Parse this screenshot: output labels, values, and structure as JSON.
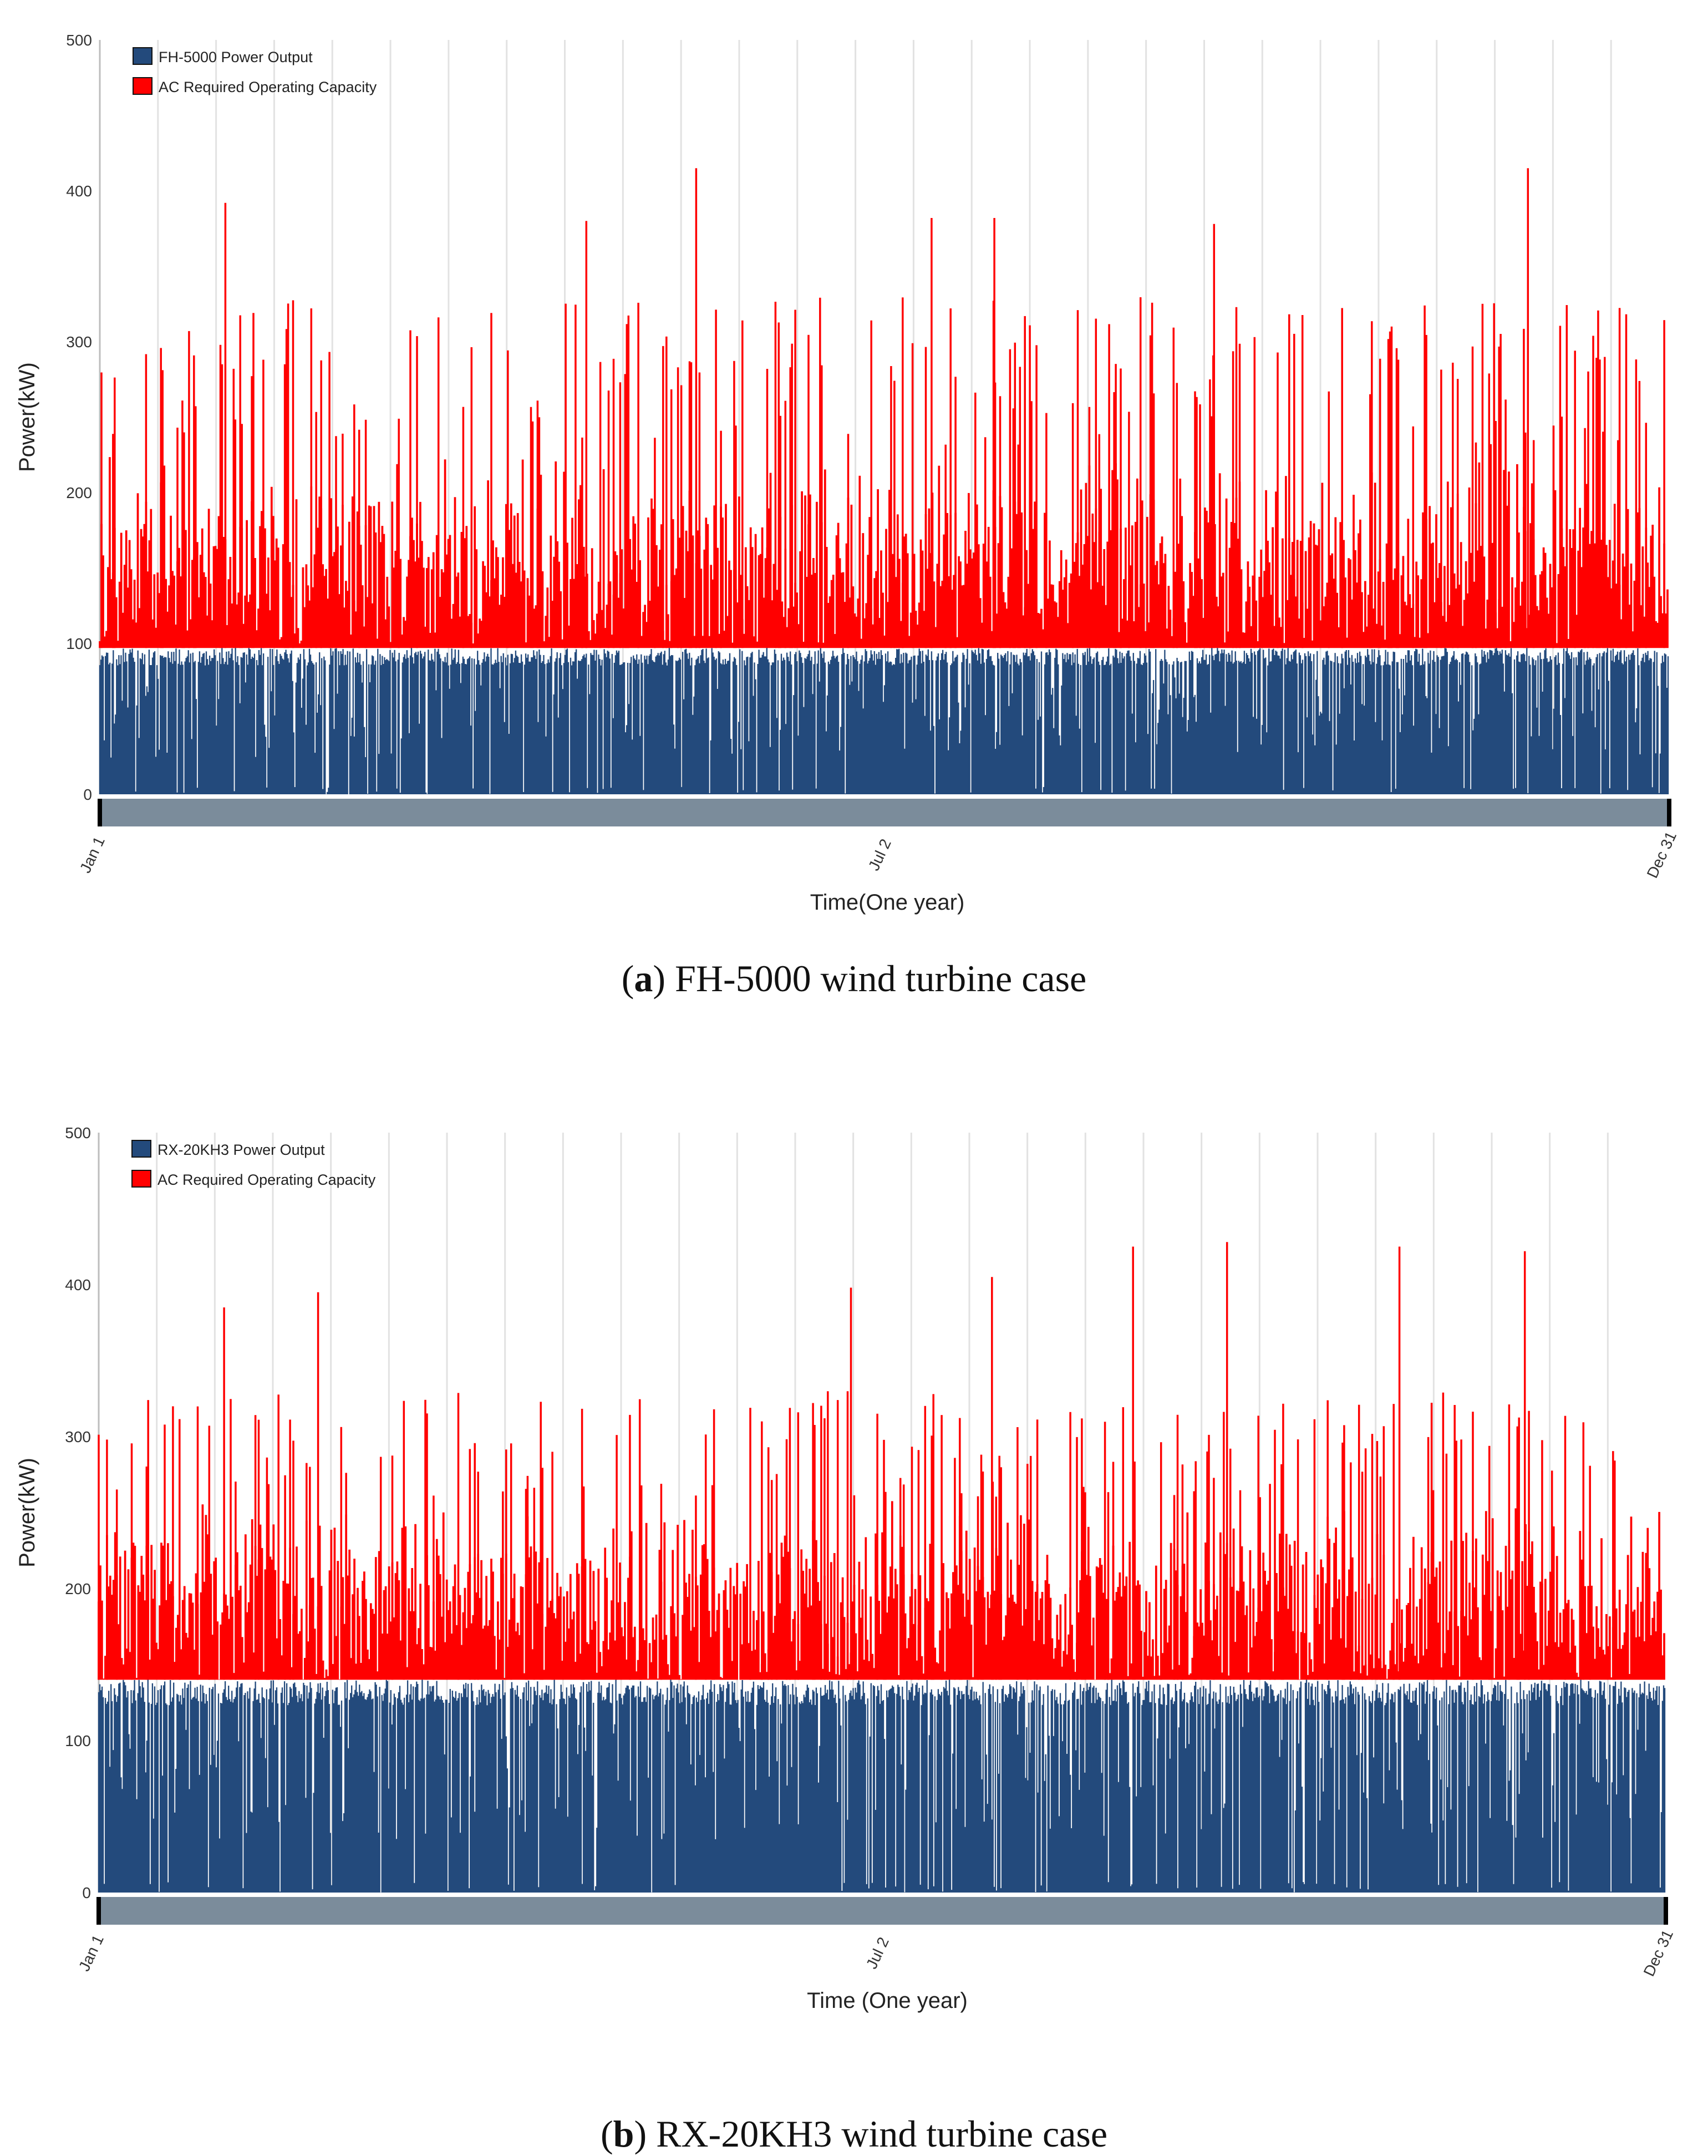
{
  "chart_data": [
    {
      "type": "bar",
      "panel_id": "a",
      "ylabel": "Power(kW)",
      "xlabel": "Time(One year)",
      "ylim": [
        0,
        500
      ],
      "yticks": [
        0,
        100,
        200,
        300,
        400,
        500
      ],
      "xticks": [
        "Jan 1",
        "Jul 2",
        "Dec 31"
      ],
      "grid": "vertical",
      "legend_position": "top-left",
      "caption_letter": "a",
      "caption_text": ") FH-5000 wind turbine case",
      "series": [
        {
          "name": "FH-5000 Power Output",
          "color": "#234a7c",
          "cap": 97,
          "typical_range": [
            0,
            97
          ]
        },
        {
          "name": "AC Required Operating Capacity",
          "color": "#ff0000",
          "base": 97,
          "typical_range": [
            100,
            230
          ],
          "peaks": [
            [
              8,
              392
            ],
            [
              38,
              415
            ],
            [
              53,
              382
            ],
            [
              57,
              382
            ],
            [
              91,
              415
            ],
            [
              31,
              380
            ],
            [
              71,
              378
            ]
          ]
        }
      ]
    },
    {
      "type": "bar",
      "panel_id": "b",
      "ylabel": "Power(kW)",
      "xlabel": "Time (One year)",
      "ylim": [
        0,
        500
      ],
      "yticks": [
        0,
        100,
        200,
        300,
        400,
        500
      ],
      "xticks": [
        "Jan 1",
        "Jul 2",
        "Dec 31"
      ],
      "grid": "vertical",
      "legend_position": "top-left",
      "caption_letter": "b",
      "caption_text": ") RX-20KH3 wind turbine case",
      "series": [
        {
          "name": "RX-20KH3 Power Output",
          "color": "#234a7c",
          "cap": 140,
          "typical_range": [
            0,
            140
          ]
        },
        {
          "name": "AC Required Operating Capacity",
          "color": "#ff0000",
          "base": 140,
          "typical_range": [
            140,
            260
          ],
          "peaks": [
            [
              8,
              385
            ],
            [
              14,
              395
            ],
            [
              66,
              425
            ],
            [
              72,
              428
            ],
            [
              83,
              425
            ],
            [
              91,
              422
            ],
            [
              48,
              398
            ],
            [
              57,
              405
            ]
          ]
        }
      ]
    }
  ],
  "caption_open": "("
}
